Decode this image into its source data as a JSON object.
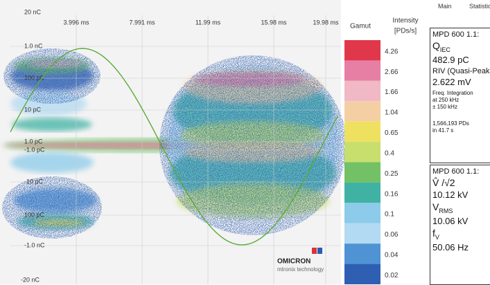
{
  "plot": {
    "corner_top": "20 nC",
    "corner_bottom": "-20 nC",
    "time_ticks": [
      "3.996 ms",
      "7.991 ms",
      "11.99 ms",
      "15.98 ms",
      "19.98 ms"
    ],
    "charge_ticks": [
      "1.0 nC",
      "100 pC",
      "10 pC",
      "1.0 pC",
      "-1.0 pC",
      "-10 pC",
      "100 pC",
      "-1.0 nC"
    ]
  },
  "colorbar": {
    "title": "Gamut",
    "unit": [
      "Intensity",
      "[PDs/s]"
    ],
    "levels": [
      {
        "label": "4.26",
        "color": "#e0384a"
      },
      {
        "label": "2.66",
        "color": "#e77ea4"
      },
      {
        "label": "1.66",
        "color": "#f1b8c6"
      },
      {
        "label": "1.04",
        "color": "#f4cfa4"
      },
      {
        "label": "0.65",
        "color": "#efe160"
      },
      {
        "label": "0.4",
        "color": "#c8df6e"
      },
      {
        "label": "0.25",
        "color": "#72c166"
      },
      {
        "label": "0.16",
        "color": "#3fb2a4"
      },
      {
        "label": "0.1",
        "color": "#8ccbea"
      },
      {
        "label": "0.06",
        "color": "#b2daf2"
      },
      {
        "label": "0.04",
        "color": "#4f93d4"
      },
      {
        "label": "0.02",
        "color": "#2f5fb2"
      }
    ]
  },
  "tabs": [
    "Main",
    "Statistic"
  ],
  "panel1": {
    "device": "MPD 600 1.1:",
    "q": "Q",
    "q_sub": "IEC",
    "charge": "482.9 pC",
    "riv": "RIV (Quasi-Peak",
    "voltage": "2.622 mV",
    "notes": [
      "Freq. Integration",
      "at 250 kHz",
      "± 150 kHz"
    ],
    "count": [
      "1,566,193 PDs",
      "in 41.7 s"
    ]
  },
  "panel2": {
    "device": "MPD 600 1.1:",
    "peak": "V̂ /√2",
    "peak_value": "10.12 kV",
    "rms": "V",
    "rms_sub": "RMS",
    "rms_value": "10.06 kV",
    "freq": "f",
    "freq_sub": "V",
    "freq_value": "50.06 Hz"
  },
  "logo": {
    "name": "OMICRON",
    "sub": "mtronix technology"
  }
}
